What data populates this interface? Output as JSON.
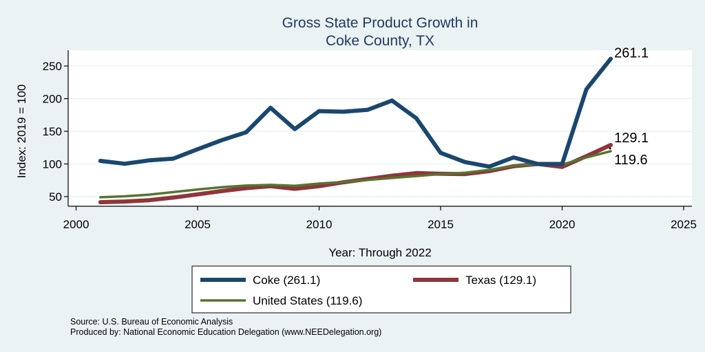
{
  "chart_data": {
    "type": "line",
    "title": "Gross State Product Growth in",
    "subtitle": "Coke County, TX",
    "xlabel": "Year: Through 2022",
    "ylabel": "Index: 2019 = 100",
    "xlim": [
      2000,
      2025
    ],
    "ylim": [
      30,
      272
    ],
    "xticks": [
      2000,
      2005,
      2010,
      2015,
      2020,
      2025
    ],
    "yticks": [
      50,
      100,
      150,
      200,
      250
    ],
    "grid": "horizontal",
    "legend_position": "bottom",
    "x": [
      2001,
      2002,
      2003,
      2004,
      2005,
      2006,
      2007,
      2008,
      2009,
      2010,
      2011,
      2012,
      2013,
      2014,
      2015,
      2016,
      2017,
      2018,
      2019,
      2020,
      2021,
      2022
    ],
    "series": [
      {
        "name": "Coke",
        "legend_label": "Coke  (261.1)",
        "color": "#1a476f",
        "end_label": "261.1",
        "values": [
          104.7,
          100.3,
          105.5,
          108.2,
          122.5,
          136.5,
          148.5,
          186,
          153.5,
          181,
          180,
          183,
          197,
          170,
          117,
          103,
          96,
          110,
          100,
          100,
          214.5,
          261.1
        ]
      },
      {
        "name": "Texas",
        "legend_label": "Texas (129.1)",
        "color": "#90353b",
        "end_label": "129.1",
        "values": [
          41.5,
          42.5,
          44.5,
          48.5,
          53.5,
          58.5,
          63,
          66,
          62,
          66,
          72,
          77,
          82,
          86,
          85,
          84.5,
          89,
          96.5,
          100,
          95.5,
          112,
          129.1
        ]
      },
      {
        "name": "United States",
        "legend_label": "United States (119.6)",
        "color": "#55752f",
        "end_label": "119.6",
        "values": [
          49,
          50.5,
          53,
          57,
          61,
          64.5,
          67,
          68,
          66.5,
          70,
          72.5,
          75.5,
          78.5,
          81.5,
          84.5,
          86.5,
          91,
          97,
          100,
          99,
          110,
          119.6
        ]
      }
    ]
  },
  "notes": {
    "source": "Source: U.S. Bureau of Economic Analysis",
    "produced_by": "Produced by: National Economic Education Delegation (www.NEEDelegation.org)"
  }
}
